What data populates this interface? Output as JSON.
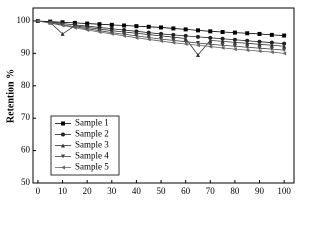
{
  "chart_data": {
    "type": "line",
    "y_label": "Retention %",
    "x": [
      0,
      5,
      10,
      15,
      20,
      25,
      30,
      35,
      40,
      45,
      50,
      55,
      60,
      65,
      70,
      75,
      80,
      85,
      90,
      95,
      100
    ],
    "series": [
      {
        "name": "Sample 1",
        "color": "#000000",
        "marker": "square",
        "values": [
          100,
          99.8,
          99.6,
          99.4,
          99.2,
          99,
          98.8,
          98.6,
          98.4,
          98.2,
          98,
          97.7,
          97.4,
          97.1,
          96.8,
          96.6,
          96.4,
          96.2,
          96,
          95.7,
          95.5
        ]
      },
      {
        "name": "Sample 2",
        "color": "#222222",
        "marker": "circle",
        "values": [
          100,
          99.6,
          99.2,
          98.8,
          98.4,
          98,
          97.6,
          97.2,
          96.8,
          96.4,
          96,
          95.7,
          95.4,
          95.1,
          94.8,
          94.5,
          94.2,
          93.9,
          93.6,
          93.3,
          93
        ]
      },
      {
        "name": "Sample 3",
        "color": "#333333",
        "marker": "triangle-up",
        "values": [
          100,
          99.5,
          96,
          98.5,
          98,
          97.5,
          97,
          96.6,
          96.2,
          95.8,
          95.4,
          95,
          94.6,
          89.5,
          94,
          93.7,
          93.4,
          93.1,
          92.8,
          92.5,
          92.2
        ]
      },
      {
        "name": "Sample 4",
        "color": "#444444",
        "marker": "triangle-down",
        "values": [
          100,
          99.4,
          98.8,
          98.2,
          97.6,
          97,
          96.4,
          95.9,
          95.4,
          94.9,
          94.4,
          94,
          93.6,
          93.2,
          92.8,
          92.5,
          92.2,
          91.9,
          91.6,
          91.3,
          91
        ]
      },
      {
        "name": "Sample 5",
        "color": "#666666",
        "marker": "triangle-left",
        "values": [
          100,
          99.3,
          98.6,
          97.9,
          97.2,
          96.6,
          96,
          95.4,
          94.8,
          94.3,
          93.8,
          93.3,
          92.9,
          92.5,
          92.1,
          91.7,
          91.3,
          91,
          90.7,
          90.4,
          90
        ]
      }
    ],
    "xlim": [
      -2,
      104
    ],
    "ylim": [
      50,
      104
    ],
    "xticks": [
      0,
      10,
      20,
      30,
      40,
      50,
      60,
      70,
      80,
      90,
      100
    ],
    "yticks": [
      50,
      60,
      70,
      80,
      90,
      100
    ],
    "legend": "lower-left"
  }
}
